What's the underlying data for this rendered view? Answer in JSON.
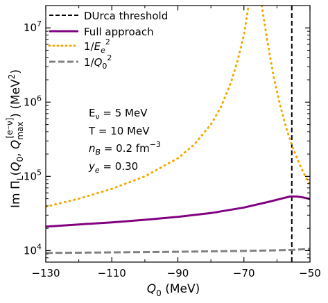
{
  "chart_data": {
    "type": "line",
    "xlabel": "Q_0 (MeV)",
    "ylabel": "Im Π_L(Q_0, Q_max^[e⁻ν]) (MeV²)",
    "xlim": [
      -130,
      -50
    ],
    "ylim": [
      7000,
      20000000
    ],
    "yscale": "log",
    "x_ticks": [
      -130,
      -110,
      -90,
      -70,
      -50
    ],
    "x_minor_ticks": [
      -120,
      -100,
      -80,
      -60
    ],
    "y_ticks": [
      10000,
      100000,
      1000000,
      10000000
    ],
    "legend_placement": "top-left",
    "grid": false,
    "series": [
      {
        "name": "DUrca threshold",
        "style": "dashed",
        "color": "#000000",
        "vline_x": -55.5
      },
      {
        "name": "Full approach",
        "style": "solid",
        "color": "#800080",
        "points": [
          [
            -130,
            21000
          ],
          [
            -120,
            22500
          ],
          [
            -110,
            24000
          ],
          [
            -100,
            26000
          ],
          [
            -90,
            28500
          ],
          [
            -80,
            32000
          ],
          [
            -70,
            38000
          ],
          [
            -62,
            46000
          ],
          [
            -58,
            51000
          ],
          [
            -56,
            53500
          ],
          [
            -54,
            53500
          ],
          [
            -52,
            52000
          ],
          [
            -50,
            49500
          ]
        ]
      },
      {
        "name": "1/E_e²",
        "style": "dotted",
        "color": "#f5a800",
        "points": [
          [
            -130,
            39000
          ],
          [
            -120,
            50000
          ],
          [
            -110,
            68000
          ],
          [
            -100,
            100000
          ],
          [
            -90,
            175000
          ],
          [
            -85,
            270000
          ],
          [
            -80,
            500000
          ],
          [
            -77,
            850000
          ],
          [
            -74,
            1800000
          ],
          [
            -72,
            3500000
          ],
          [
            -70,
            8000000
          ],
          [
            -68.6,
            20000000
          ]
        ],
        "points_right": [
          [
            -64.6,
            20000000
          ],
          [
            -63,
            7000000
          ],
          [
            -61,
            2200000
          ],
          [
            -59,
            900000
          ],
          [
            -57,
            420000
          ],
          [
            -55,
            230000
          ],
          [
            -53,
            140000
          ],
          [
            -51,
            92000
          ],
          [
            -50,
            78000
          ]
        ]
      },
      {
        "name": "1/Q_0²",
        "style": "dashed",
        "color": "#808080",
        "points": [
          [
            -130,
            9300
          ],
          [
            -110,
            9450
          ],
          [
            -90,
            9650
          ],
          [
            -70,
            9900
          ],
          [
            -60,
            10100
          ],
          [
            -55,
            10250
          ],
          [
            -50,
            10550
          ]
        ]
      }
    ],
    "annotations": [
      "E_ν = 5 MeV",
      "T = 10 MeV",
      "n_B = 0.2 fm⁻³",
      "y_e = 0.30"
    ]
  }
}
